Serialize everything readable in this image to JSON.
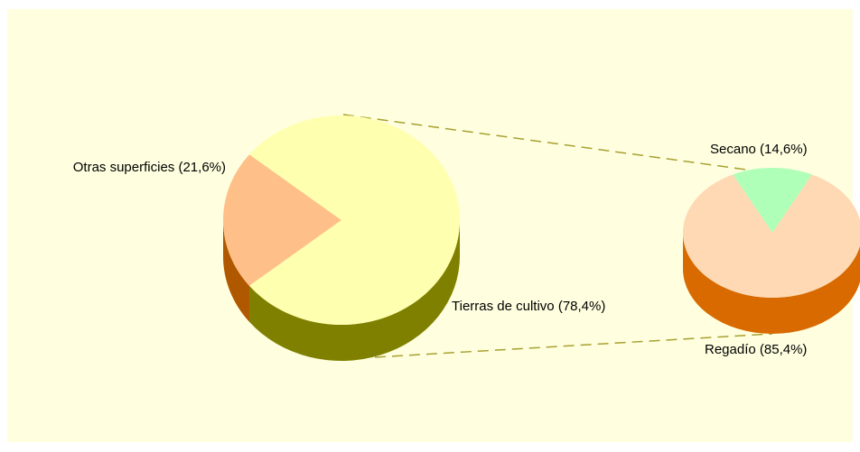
{
  "chart_data": [
    {
      "type": "pie",
      "categories": [
        "Otras superficies",
        "Tierras de cultivo"
      ],
      "values": [
        21.6,
        78.4
      ],
      "value_labels": [
        "(21,6%)",
        "(78,4%)"
      ],
      "colors": [
        "#ffbf88",
        "#ffffb0"
      ],
      "side_colors": [
        "#b05800",
        "#808000"
      ]
    },
    {
      "type": "pie",
      "categories": [
        "Secano",
        "Regadío"
      ],
      "values": [
        14.6,
        85.4
      ],
      "value_labels": [
        "(14,6%)",
        "(85,4%)"
      ],
      "colors": [
        "#b0ffb8",
        "#ffd8b4"
      ],
      "side_colors": [
        "#1a8a2a",
        "#d86a00"
      ]
    }
  ]
}
